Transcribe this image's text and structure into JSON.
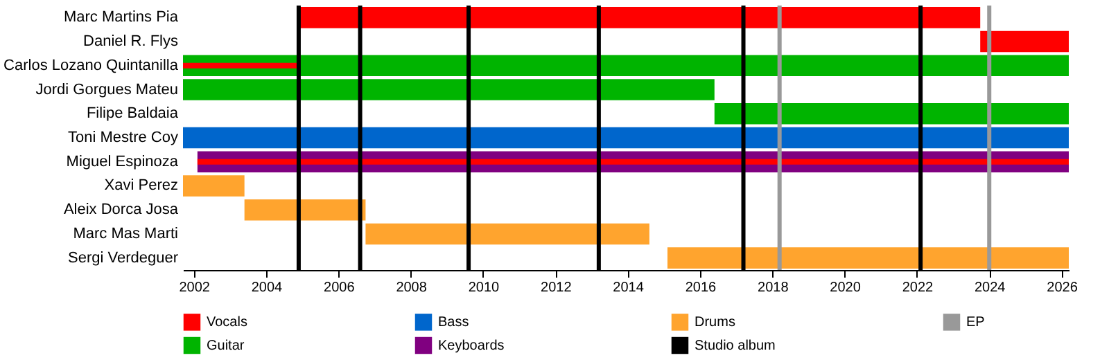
{
  "chart_data": {
    "type": "bar",
    "orientation": "horizontal",
    "categories": [
      "Marc Martins Pia",
      "Daniel R. Flys",
      "Carlos Lozano Quintanilla",
      "Jordi Gorgues Mateu",
      "Filipe Baldaia",
      "Toni Mestre Coy",
      "Miguel Espinoza",
      "Xavi Perez",
      "Aleix Dorca Josa",
      "Marc Mas Marti",
      "Sergi Verdeguer"
    ],
    "series": [
      {
        "name": "Vocals",
        "color": "#ff0000",
        "base": [
          2004.9,
          2023.75,
          null,
          null,
          null,
          null,
          null,
          null,
          null,
          null,
          null
        ],
        "values": [
          18.85,
          2.45,
          null,
          null,
          null,
          null,
          null,
          null,
          null,
          null,
          null
        ]
      },
      {
        "name": "Guitar",
        "color": "#00b400",
        "base": [
          null,
          null,
          2001.7,
          2001.7,
          2016.4,
          null,
          null,
          null,
          null,
          null,
          null
        ],
        "values": [
          null,
          null,
          24.5,
          14.7,
          9.8,
          null,
          null,
          null,
          null,
          null,
          null
        ]
      },
      {
        "name": "Bass",
        "color": "#0066cc",
        "base": [
          null,
          null,
          null,
          null,
          null,
          2001.7,
          null,
          null,
          null,
          null,
          null
        ],
        "values": [
          null,
          null,
          null,
          null,
          null,
          24.5,
          null,
          null,
          null,
          null,
          null
        ]
      },
      {
        "name": "Keyboards",
        "color": "#800080",
        "base": [
          null,
          null,
          null,
          null,
          null,
          null,
          2002.1,
          null,
          null,
          null,
          null
        ],
        "values": [
          null,
          null,
          null,
          null,
          null,
          null,
          24.1,
          null,
          null,
          null,
          null
        ]
      },
      {
        "name": "Drums",
        "color": "#ffa42e",
        "base": [
          null,
          null,
          null,
          null,
          null,
          null,
          null,
          2001.7,
          2003.4,
          2006.75,
          2015.1
        ],
        "values": [
          null,
          null,
          null,
          null,
          null,
          null,
          null,
          1.7,
          3.35,
          7.85,
          11.1
        ]
      },
      {
        "color": "#ff0000",
        "base": [
          null,
          null,
          2001.7,
          null,
          null,
          null,
          2002.1,
          null,
          null,
          null,
          null
        ],
        "values": [
          null,
          null,
          3.2,
          null,
          null,
          null,
          24.1,
          null,
          null,
          null,
          null
        ]
      }
    ],
    "xlim": [
      2001.7,
      2026.2
    ],
    "xticks": [
      2002,
      2004,
      2006,
      2008,
      2010,
      2012,
      2014,
      2016,
      2018,
      2020,
      2022,
      2024,
      2026
    ],
    "ref_lines": [
      {
        "axis": "x",
        "value": 2004.9,
        "label": "Studio album",
        "color": "#000000"
      },
      {
        "axis": "x",
        "value": 2006.6,
        "color": "#000000"
      },
      {
        "axis": "x",
        "value": 2009.6,
        "color": "#000000"
      },
      {
        "axis": "x",
        "value": 2013.2,
        "color": "#000000"
      },
      {
        "axis": "x",
        "value": 2017.2,
        "color": "#000000"
      },
      {
        "axis": "x",
        "value": 2018.2,
        "label": "EP",
        "color": "#999999"
      },
      {
        "axis": "x",
        "value": 2022.1,
        "color": "#000000"
      },
      {
        "axis": "x",
        "value": 2024.0,
        "color": "#999999"
      }
    ],
    "legend": "bottom",
    "grid": false
  }
}
